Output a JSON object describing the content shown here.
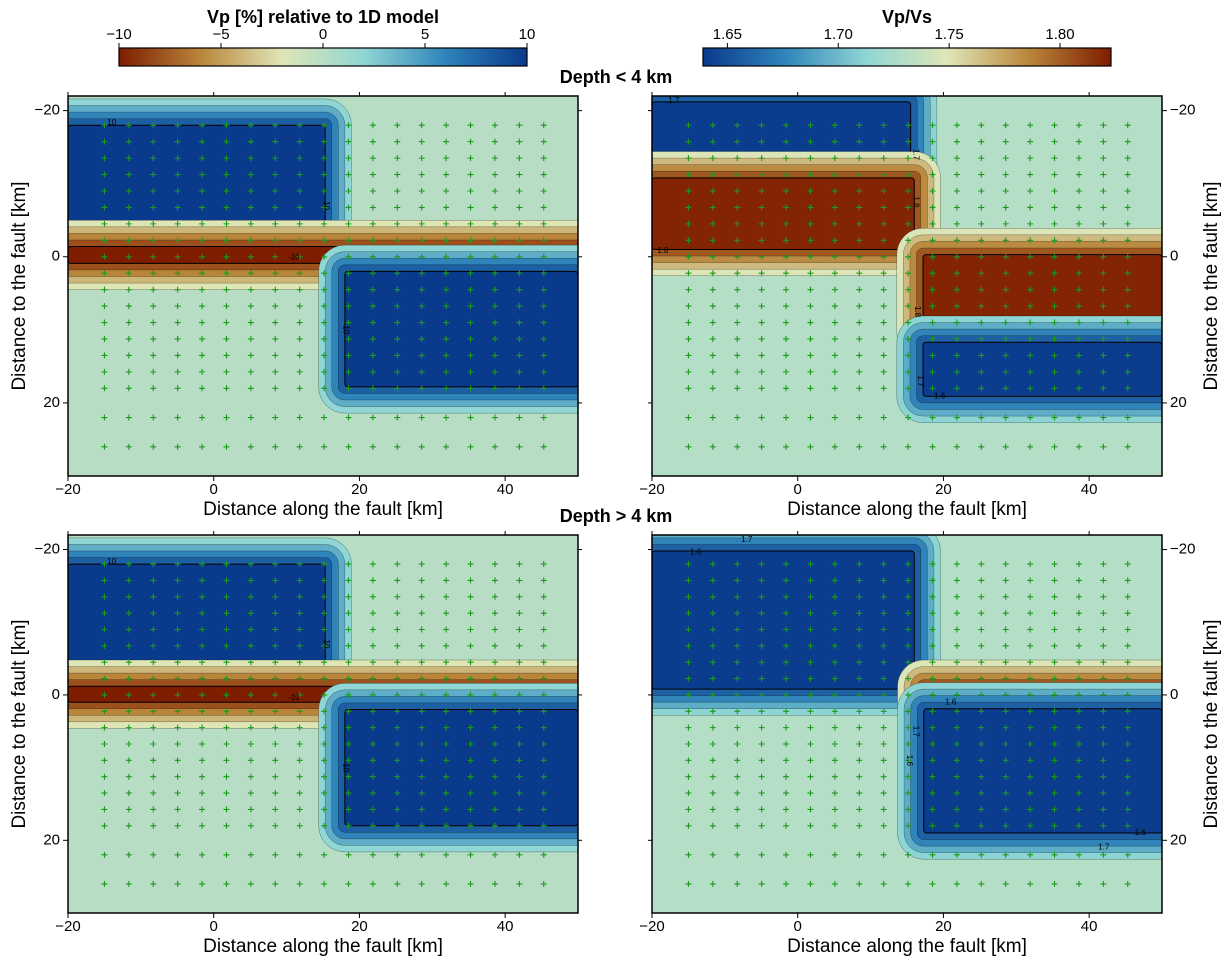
{
  "colorbars": [
    {
      "title": "Vp [%] relative to 1D model",
      "lim": [
        -10,
        10
      ],
      "ticks": [
        {
          "value": -10,
          "label": "−10"
        },
        {
          "value": -5,
          "label": "−5"
        },
        0,
        5,
        10
      ],
      "colors": [
        "#7e1d00",
        "#b9853a",
        "#dfe6b6",
        "#8fd6d4",
        "#2f84ba",
        "#0a3a8c"
      ]
    },
    {
      "title": "Vp/Vs",
      "lim": [
        1.639,
        1.823
      ],
      "ticks": [
        1.65,
        {
          "value": 1.7,
          "label": "1.70"
        },
        1.75,
        {
          "value": 1.8,
          "label": "1.80"
        }
      ],
      "colors": [
        "#0a3a8c",
        "#2f84ba",
        "#8fd6d4",
        "#dfe6b6",
        "#b9853a",
        "#7e1d00"
      ]
    }
  ],
  "sections": [
    "Depth < 4 km",
    "Depth > 4 km"
  ],
  "xlabel": "Distance along the fault [km]",
  "ylabel": "Distance to the fault [km]",
  "xlim": [
    -20,
    50
  ],
  "ylim": [
    30,
    -22
  ],
  "xticks": [
    {
      "value": -20,
      "label": "−20"
    },
    0,
    20,
    40
  ],
  "yticks": [
    {
      "value": -20,
      "label": "−20"
    },
    0,
    20
  ],
  "panels": [
    {
      "colorbar": 0,
      "background": 0,
      "regions": [
        {
          "x": [
            -20,
            15.3
          ],
          "y": [
            -18,
            -3.3
          ],
          "value": 10
        },
        {
          "x": [
            -20,
            50
          ],
          "y": [
            -1.4,
            0.9
          ],
          "value": -10
        },
        {
          "x": [
            18,
            50
          ],
          "y": [
            2,
            17.8
          ],
          "value": 10
        }
      ],
      "contour_labels": [
        "10",
        "10",
        "-10",
        "10"
      ]
    },
    {
      "colorbar": 1,
      "background": 1.73,
      "regions": [
        {
          "x": [
            -20,
            15.5
          ],
          "y": [
            -21.2,
            -11.9
          ],
          "value": 1.64
        },
        {
          "x": [
            -20,
            16
          ],
          "y": [
            -10.8,
            -1
          ],
          "value": 1.82
        },
        {
          "x": [
            17.2,
            50
          ],
          "y": [
            -0.3,
            10.4
          ],
          "value": 1.82
        },
        {
          "x": [
            17.2,
            50
          ],
          "y": [
            11.7,
            19.1
          ],
          "value": 1.64
        }
      ],
      "contour_labels": [
        "1.7",
        "1.7",
        "1.8",
        "1.8",
        "1.8",
        "1.7",
        "1.6"
      ]
    },
    {
      "colorbar": 0,
      "background": 0,
      "regions": [
        {
          "x": [
            -20,
            15.3
          ],
          "y": [
            -18,
            -1.8
          ],
          "value": 10
        },
        {
          "x": [
            -20,
            50
          ],
          "y": [
            -1.2,
            1
          ],
          "value": -10
        },
        {
          "x": [
            18,
            50
          ],
          "y": [
            2,
            18
          ],
          "value": 10
        }
      ],
      "contour_labels": [
        "10",
        "10",
        "-10",
        "10"
      ]
    },
    {
      "colorbar": 1,
      "background": 1.73,
      "regions": [
        {
          "x": [
            -20,
            16
          ],
          "y": [
            -19.8,
            -0.8
          ],
          "value": 1.64
        },
        {
          "x": [
            17.3,
            50
          ],
          "y": [
            -1.2,
            1
          ],
          "value": 1.82
        },
        {
          "x": [
            17.3,
            50
          ],
          "y": [
            1.9,
            19
          ],
          "value": 1.64
        }
      ],
      "contour_labels": [
        "1.7",
        "1.6",
        "1.6",
        "1.7",
        "1.6",
        "1.7",
        "1.6"
      ]
    }
  ]
}
